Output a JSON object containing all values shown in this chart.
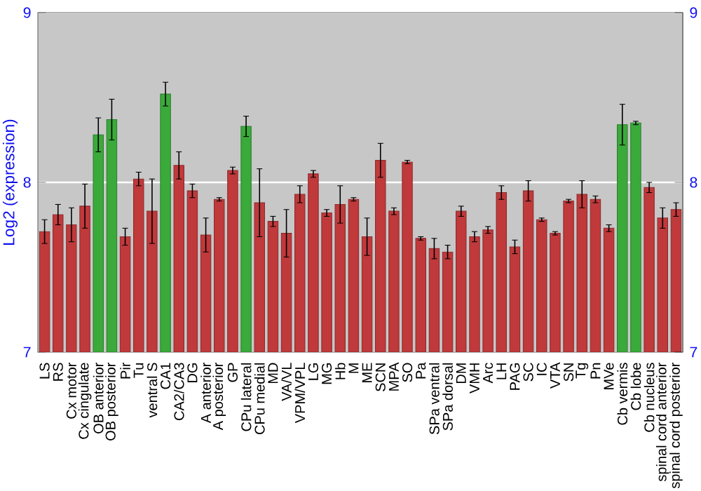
{
  "chart_data": {
    "type": "bar",
    "ylabel": "Log2 (expression)",
    "categories": [
      "LS",
      "RS",
      "Cx motor",
      "Cx cingulate",
      "OB anterior",
      "OB posterior",
      "Pir",
      "Tu",
      "ventral S",
      "CA1",
      "CA2/CA3",
      "DG",
      "A anterior",
      "A posterior",
      "GP",
      "CPu lateral",
      "CPu medial",
      "MD",
      "VA/VL",
      "VPM/VPL",
      "LG",
      "MG",
      "Hb",
      "M",
      "ME",
      "SCN",
      "MPA",
      "SO",
      "Pa",
      "SPa ventral",
      "SPa dorsal",
      "DM",
      "VMH",
      "Arc",
      "LH",
      "PAG",
      "SC",
      "IC",
      "VTA",
      "SN",
      "Tg",
      "Pn",
      "MVe",
      "Cb vermis",
      "Cb lobe",
      "Cb nucleus",
      "spinal cord anterior",
      "spinal cord posterior"
    ],
    "values": [
      7.71,
      7.81,
      7.75,
      7.86,
      8.28,
      8.37,
      7.68,
      8.02,
      7.83,
      8.52,
      8.1,
      7.95,
      7.69,
      7.9,
      8.07,
      8.33,
      7.88,
      7.77,
      7.7,
      7.93,
      8.05,
      7.82,
      7.87,
      7.9,
      7.68,
      8.13,
      7.83,
      8.12,
      7.67,
      7.61,
      7.59,
      7.83,
      7.68,
      7.72,
      7.94,
      7.62,
      7.95,
      7.78,
      7.7,
      7.89,
      7.93,
      7.9,
      7.73,
      8.34,
      8.35,
      7.97,
      7.79,
      7.84
    ],
    "errors": [
      0.07,
      0.06,
      0.1,
      0.13,
      0.1,
      0.12,
      0.05,
      0.04,
      0.19,
      0.07,
      0.08,
      0.04,
      0.1,
      0.01,
      0.02,
      0.06,
      0.2,
      0.03,
      0.14,
      0.05,
      0.02,
      0.02,
      0.11,
      0.01,
      0.11,
      0.1,
      0.02,
      0.01,
      0.01,
      0.06,
      0.04,
      0.03,
      0.03,
      0.02,
      0.04,
      0.04,
      0.06,
      0.01,
      0.01,
      0.01,
      0.08,
      0.02,
      0.02,
      0.12,
      0.01,
      0.03,
      0.06,
      0.04
    ],
    "colors": [
      "#c0393b",
      "#c0393b",
      "#c0393b",
      "#c0393b",
      "#3aaa3a",
      "#3aaa3a",
      "#c0393b",
      "#c0393b",
      "#c0393b",
      "#3aaa3a",
      "#c0393b",
      "#c0393b",
      "#c0393b",
      "#c0393b",
      "#c0393b",
      "#3aaa3a",
      "#c0393b",
      "#c0393b",
      "#c0393b",
      "#c0393b",
      "#c0393b",
      "#c0393b",
      "#c0393b",
      "#c0393b",
      "#c0393b",
      "#c0393b",
      "#c0393b",
      "#c0393b",
      "#c0393b",
      "#c0393b",
      "#c0393b",
      "#c0393b",
      "#c0393b",
      "#c0393b",
      "#c0393b",
      "#c0393b",
      "#c0393b",
      "#c0393b",
      "#c0393b",
      "#c0393b",
      "#c0393b",
      "#c0393b",
      "#c0393b",
      "#3aaa3a",
      "#3aaa3a",
      "#c0393b",
      "#c0393b",
      "#c0393b"
    ],
    "ylim": [
      7,
      9
    ],
    "yticks": [
      7,
      8,
      9
    ],
    "y2lim": [
      7,
      9
    ],
    "y2ticks": [
      7,
      8,
      9
    ],
    "grid": "y"
  }
}
